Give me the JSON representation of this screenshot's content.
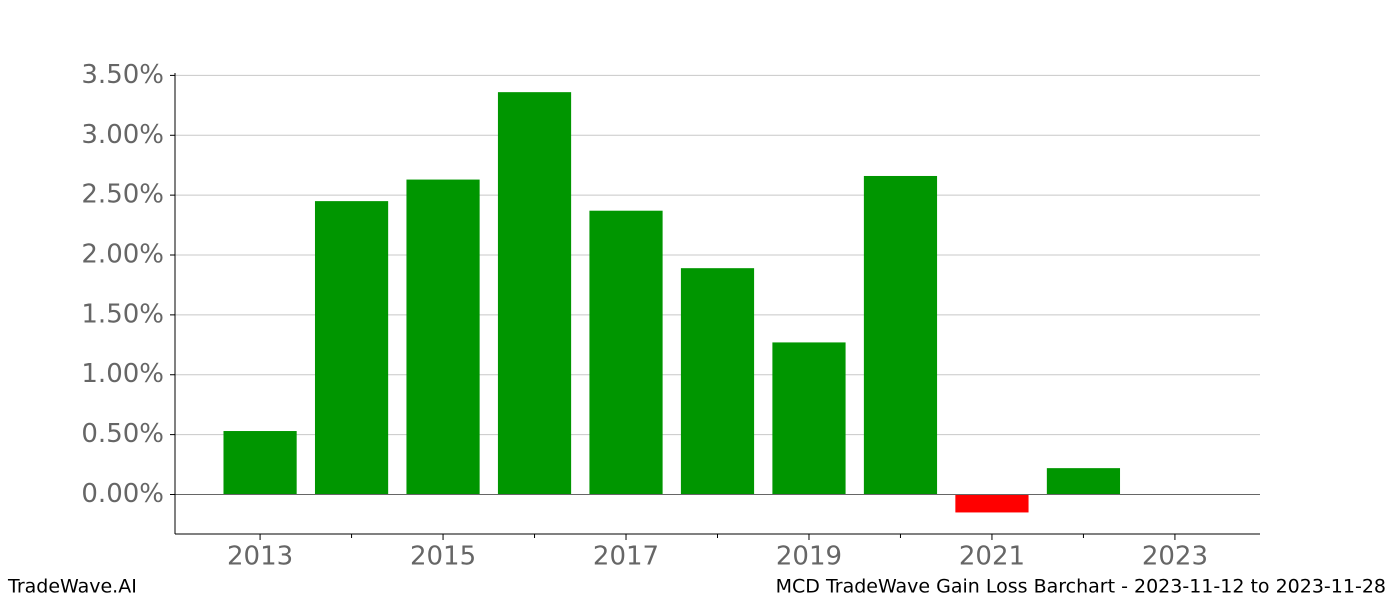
{
  "chart_data": {
    "type": "bar",
    "x": [
      2013,
      2014,
      2015,
      2016,
      2017,
      2018,
      2019,
      2020,
      2021,
      2022
    ],
    "values": [
      0.53,
      2.45,
      2.63,
      3.36,
      2.37,
      1.89,
      1.27,
      2.66,
      -0.15,
      0.22
    ],
    "colors": [
      "#009600",
      "#009600",
      "#009600",
      "#009600",
      "#009600",
      "#009600",
      "#009600",
      "#009600",
      "#ff0000",
      "#009600"
    ],
    "xlim": [
      2012.07,
      2023.93
    ],
    "xticks": [
      2013,
      2015,
      2017,
      2019,
      2021,
      2023
    ],
    "minor_xticks": [
      2014,
      2016,
      2018,
      2020,
      2022
    ],
    "ylim": [
      -0.33,
      3.52
    ],
    "yticks": [
      {
        "value": 0,
        "label": "0.00%"
      },
      {
        "value": 0.5,
        "label": "0.50%"
      },
      {
        "value": 1,
        "label": "1.00%"
      },
      {
        "value": 1.5,
        "label": "1.50%"
      },
      {
        "value": 2,
        "label": "2.00%"
      },
      {
        "value": 2.5,
        "label": "2.50%"
      },
      {
        "value": 3,
        "label": "3.00%"
      },
      {
        "value": 3.5,
        "label": "3.50%"
      }
    ],
    "grid": true,
    "footer_left": "TradeWave.AI",
    "footer_right": "MCD TradeWave Gain Loss Barchart - 2023-11-12 to 2023-11-28"
  }
}
